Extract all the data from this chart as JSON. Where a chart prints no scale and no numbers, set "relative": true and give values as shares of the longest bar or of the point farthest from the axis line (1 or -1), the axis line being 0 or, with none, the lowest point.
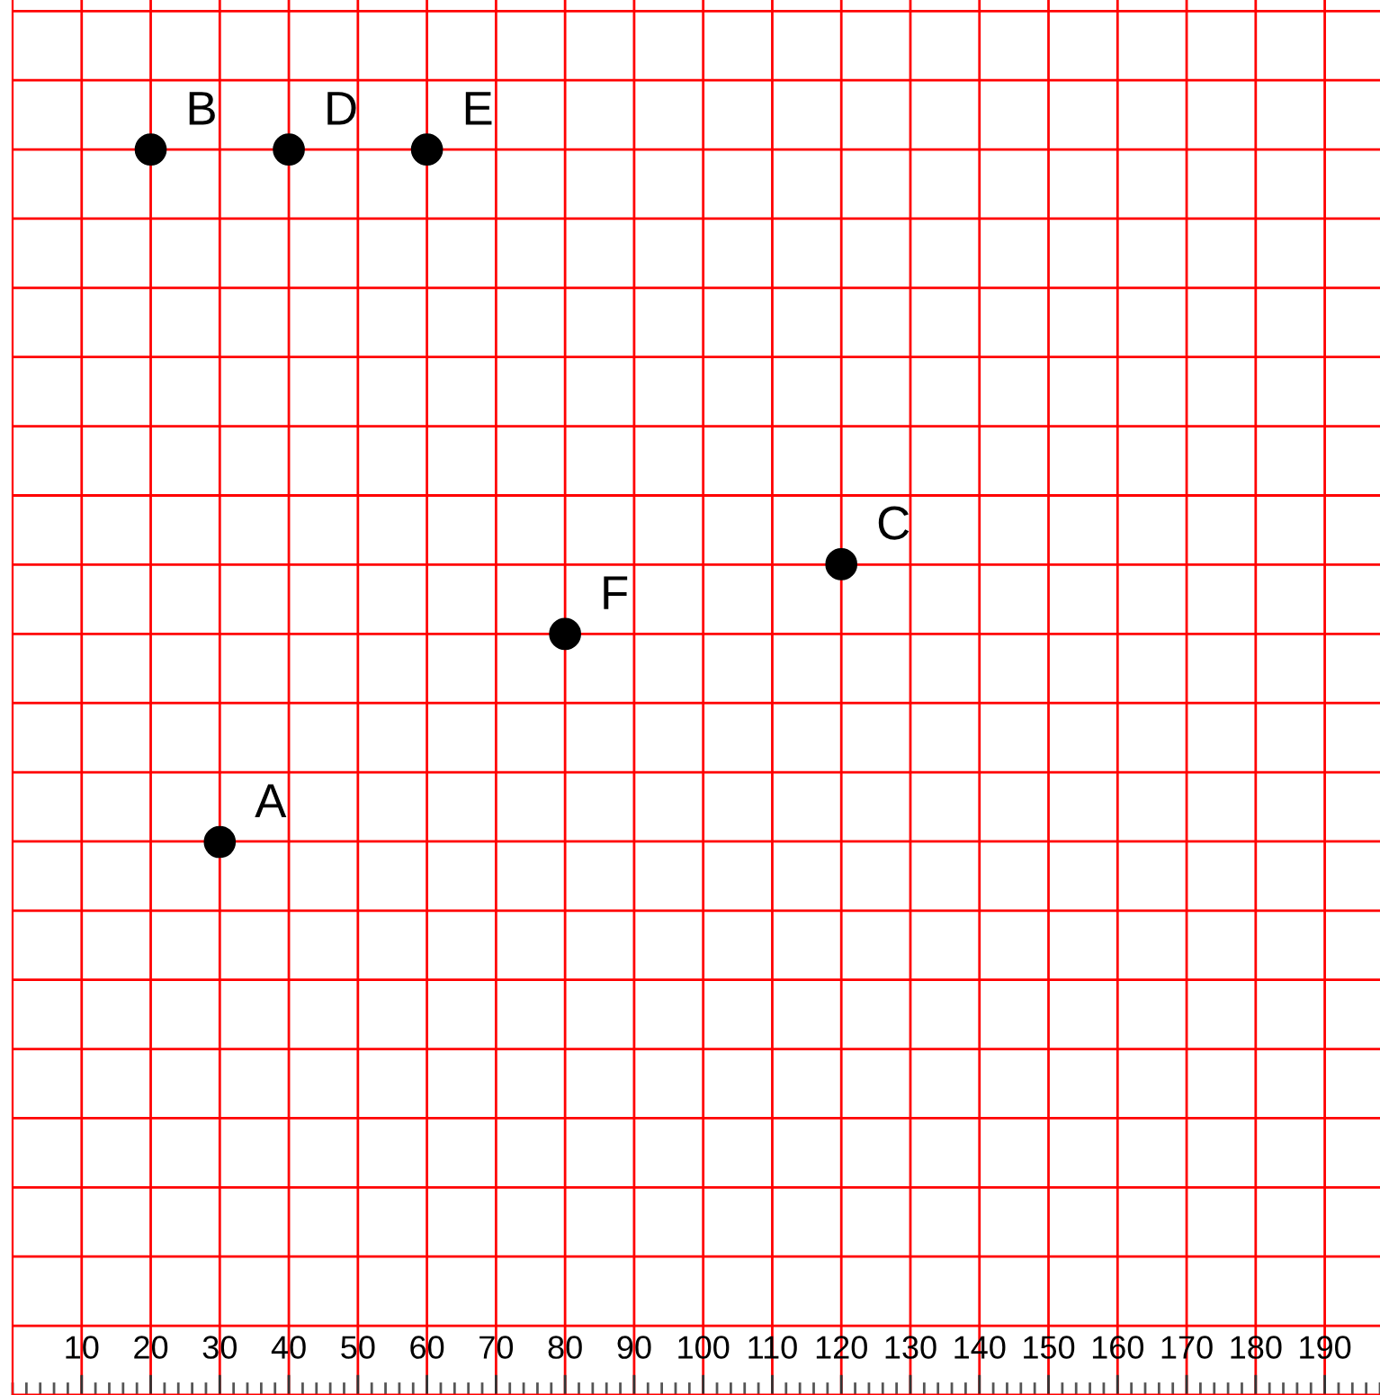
{
  "chart_data": {
    "type": "scatter",
    "relative": true,
    "x": [
      30,
      20,
      120,
      40,
      60,
      80
    ],
    "series": [
      {
        "color": "#000000",
        "values": [
          0.444,
          1,
          0.667,
          1,
          1,
          0.611
        ]
      }
    ],
    "xlim": [
      0,
      198
    ],
    "xticks": [
      10,
      20,
      30,
      40,
      50,
      60,
      70,
      80,
      90,
      100,
      110,
      120,
      130,
      140,
      150,
      160,
      170,
      180,
      190
    ],
    "tick_labels": "x",
    "grid": true,
    "marker": "circle",
    "annotations": [
      {
        "text": "A",
        "x": 30,
        "y": 0.444
      },
      {
        "text": "B",
        "x": 20,
        "y": 1
      },
      {
        "text": "C",
        "x": 120,
        "y": 0.667
      },
      {
        "text": "D",
        "x": 40,
        "y": 1
      },
      {
        "text": "E",
        "x": 60,
        "y": 1
      },
      {
        "text": "F",
        "x": 80,
        "y": 0.611
      }
    ]
  }
}
